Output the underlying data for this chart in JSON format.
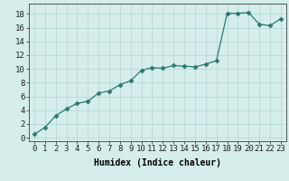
{
  "x": [
    0,
    1,
    2,
    3,
    4,
    5,
    6,
    7,
    8,
    9,
    10,
    11,
    12,
    13,
    14,
    15,
    16,
    17,
    18,
    19,
    20,
    21,
    22,
    23
  ],
  "y": [
    0.5,
    1.5,
    3.2,
    4.2,
    5.0,
    5.3,
    6.5,
    6.8,
    7.7,
    8.3,
    9.8,
    10.2,
    10.1,
    10.5,
    10.4,
    10.3,
    10.7,
    11.2,
    18.1,
    18.1,
    18.2,
    16.5,
    16.3,
    17.3
  ],
  "line_color": "#2a7a6f",
  "marker": "D",
  "marker_size": 2.5,
  "bg_color": "#d5eeeb",
  "grid_color": "#b8d9d5",
  "xlabel": "Humidex (Indice chaleur)",
  "xlim": [
    -0.5,
    23.5
  ],
  "ylim": [
    -0.5,
    19.5
  ],
  "xticks": [
    0,
    1,
    2,
    3,
    4,
    5,
    6,
    7,
    8,
    9,
    10,
    11,
    12,
    13,
    14,
    15,
    16,
    17,
    18,
    19,
    20,
    21,
    22,
    23
  ],
  "yticks": [
    0,
    2,
    4,
    6,
    8,
    10,
    12,
    14,
    16,
    18
  ],
  "label_fontsize": 7,
  "tick_fontsize": 6.5
}
